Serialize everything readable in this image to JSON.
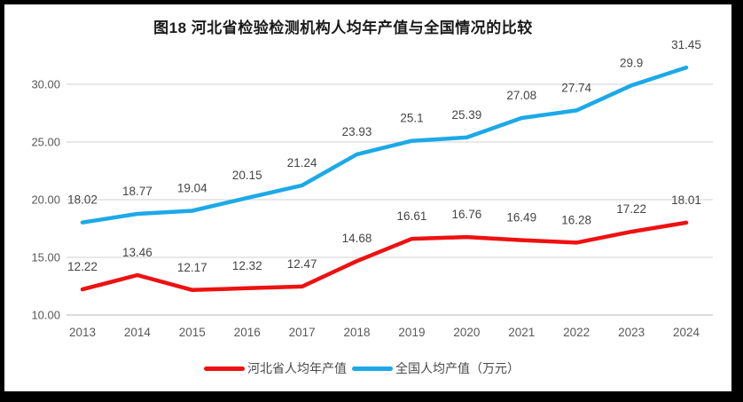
{
  "figure": {
    "title": "图18 河北省检验检测机构人均年产值与全国情况的比较"
  },
  "colors": {
    "hebei_red": "#ee1111",
    "national_blue": "#1ca9e8",
    "gridline": "#d9d9d9",
    "axis_line": "#c6c6c6",
    "axis_text": "#595959",
    "data_label_text": "#444444",
    "frame_border": "#000000"
  },
  "chart_data": {
    "type": "line",
    "title": "图18 河北省检验检测机构人均年产值与全国情况的比较",
    "categories": [
      "2013",
      "2014",
      "2015",
      "2016",
      "2017",
      "2018",
      "2019",
      "2020",
      "2021",
      "2022",
      "2023",
      "2024"
    ],
    "series": [
      {
        "name": "河北省人均年产值",
        "color": "#ee1111",
        "values": [
          12.22,
          13.46,
          12.17,
          12.32,
          12.47,
          14.68,
          16.61,
          16.76,
          16.49,
          16.28,
          17.22,
          18.01
        ]
      },
      {
        "name": "全国人均产值（万元）",
        "color": "#1ca9e8",
        "values": [
          18.02,
          18.77,
          19.04,
          20.15,
          21.24,
          23.93,
          25.1,
          25.39,
          27.08,
          27.74,
          29.9,
          31.45
        ]
      }
    ],
    "xlabel": "",
    "ylabel": "",
    "ylim": [
      10,
      32.5
    ],
    "y_ticks": [
      10,
      15,
      20,
      25,
      30
    ],
    "y_tick_labels": [
      "10.00",
      "15.00",
      "20.00",
      "25.00",
      "30.00"
    ],
    "grid": "horizontal",
    "data_labels": true,
    "legend_position": "bottom"
  }
}
